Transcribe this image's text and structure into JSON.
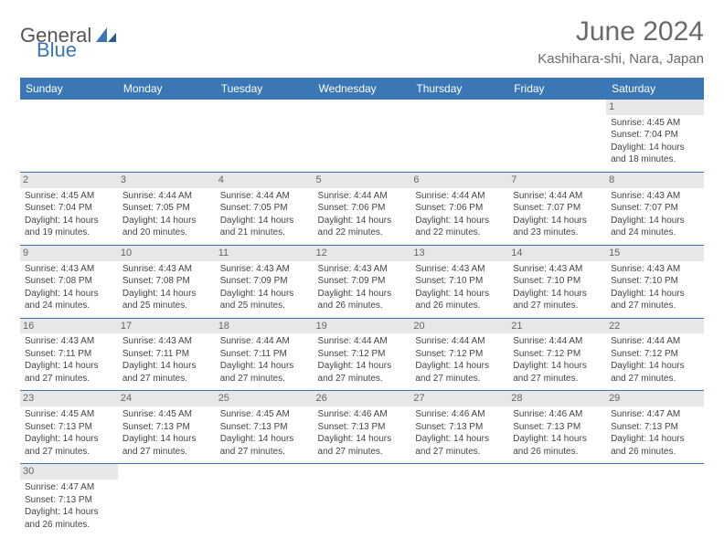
{
  "logo": {
    "general": "General",
    "blue": "Blue"
  },
  "header": {
    "monthTitle": "June 2024",
    "location": "Kashihara-shi, Nara, Japan"
  },
  "weekdays": [
    "Sunday",
    "Monday",
    "Tuesday",
    "Wednesday",
    "Thursday",
    "Friday",
    "Saturday"
  ],
  "colors": {
    "headerBlue": "#3a77b4",
    "dayGray": "#e7e7e7",
    "titleGray": "#6a6a6a"
  },
  "days": [
    {
      "n": 1,
      "sr": "4:45 AM",
      "ss": "7:04 PM",
      "dl": "14 hours and 18 minutes."
    },
    {
      "n": 2,
      "sr": "4:45 AM",
      "ss": "7:04 PM",
      "dl": "14 hours and 19 minutes."
    },
    {
      "n": 3,
      "sr": "4:44 AM",
      "ss": "7:05 PM",
      "dl": "14 hours and 20 minutes."
    },
    {
      "n": 4,
      "sr": "4:44 AM",
      "ss": "7:05 PM",
      "dl": "14 hours and 21 minutes."
    },
    {
      "n": 5,
      "sr": "4:44 AM",
      "ss": "7:06 PM",
      "dl": "14 hours and 22 minutes."
    },
    {
      "n": 6,
      "sr": "4:44 AM",
      "ss": "7:06 PM",
      "dl": "14 hours and 22 minutes."
    },
    {
      "n": 7,
      "sr": "4:44 AM",
      "ss": "7:07 PM",
      "dl": "14 hours and 23 minutes."
    },
    {
      "n": 8,
      "sr": "4:43 AM",
      "ss": "7:07 PM",
      "dl": "14 hours and 24 minutes."
    },
    {
      "n": 9,
      "sr": "4:43 AM",
      "ss": "7:08 PM",
      "dl": "14 hours and 24 minutes."
    },
    {
      "n": 10,
      "sr": "4:43 AM",
      "ss": "7:08 PM",
      "dl": "14 hours and 25 minutes."
    },
    {
      "n": 11,
      "sr": "4:43 AM",
      "ss": "7:09 PM",
      "dl": "14 hours and 25 minutes."
    },
    {
      "n": 12,
      "sr": "4:43 AM",
      "ss": "7:09 PM",
      "dl": "14 hours and 26 minutes."
    },
    {
      "n": 13,
      "sr": "4:43 AM",
      "ss": "7:10 PM",
      "dl": "14 hours and 26 minutes."
    },
    {
      "n": 14,
      "sr": "4:43 AM",
      "ss": "7:10 PM",
      "dl": "14 hours and 27 minutes."
    },
    {
      "n": 15,
      "sr": "4:43 AM",
      "ss": "7:10 PM",
      "dl": "14 hours and 27 minutes."
    },
    {
      "n": 16,
      "sr": "4:43 AM",
      "ss": "7:11 PM",
      "dl": "14 hours and 27 minutes."
    },
    {
      "n": 17,
      "sr": "4:43 AM",
      "ss": "7:11 PM",
      "dl": "14 hours and 27 minutes."
    },
    {
      "n": 18,
      "sr": "4:44 AM",
      "ss": "7:11 PM",
      "dl": "14 hours and 27 minutes."
    },
    {
      "n": 19,
      "sr": "4:44 AM",
      "ss": "7:12 PM",
      "dl": "14 hours and 27 minutes."
    },
    {
      "n": 20,
      "sr": "4:44 AM",
      "ss": "7:12 PM",
      "dl": "14 hours and 27 minutes."
    },
    {
      "n": 21,
      "sr": "4:44 AM",
      "ss": "7:12 PM",
      "dl": "14 hours and 27 minutes."
    },
    {
      "n": 22,
      "sr": "4:44 AM",
      "ss": "7:12 PM",
      "dl": "14 hours and 27 minutes."
    },
    {
      "n": 23,
      "sr": "4:45 AM",
      "ss": "7:13 PM",
      "dl": "14 hours and 27 minutes."
    },
    {
      "n": 24,
      "sr": "4:45 AM",
      "ss": "7:13 PM",
      "dl": "14 hours and 27 minutes."
    },
    {
      "n": 25,
      "sr": "4:45 AM",
      "ss": "7:13 PM",
      "dl": "14 hours and 27 minutes."
    },
    {
      "n": 26,
      "sr": "4:46 AM",
      "ss": "7:13 PM",
      "dl": "14 hours and 27 minutes."
    },
    {
      "n": 27,
      "sr": "4:46 AM",
      "ss": "7:13 PM",
      "dl": "14 hours and 27 minutes."
    },
    {
      "n": 28,
      "sr": "4:46 AM",
      "ss": "7:13 PM",
      "dl": "14 hours and 26 minutes."
    },
    {
      "n": 29,
      "sr": "4:47 AM",
      "ss": "7:13 PM",
      "dl": "14 hours and 26 minutes."
    },
    {
      "n": 30,
      "sr": "4:47 AM",
      "ss": "7:13 PM",
      "dl": "14 hours and 26 minutes."
    }
  ],
  "labels": {
    "sunrise": "Sunrise: ",
    "sunset": "Sunset: ",
    "daylight": "Daylight: "
  },
  "layout": {
    "firstDayOffset": 6,
    "daysInMonth": 30
  }
}
